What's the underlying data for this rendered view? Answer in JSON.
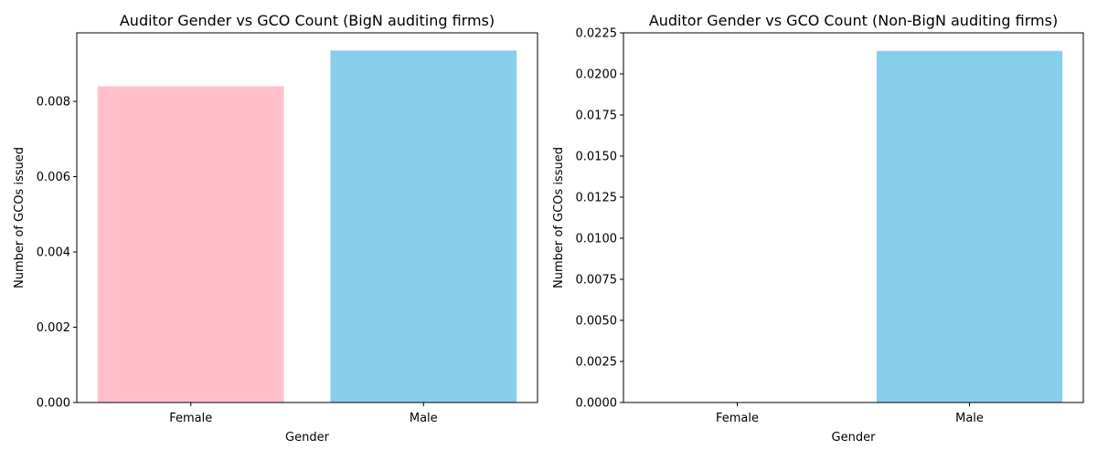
{
  "chart_data": [
    {
      "type": "bar",
      "title": "Auditor Gender vs GCO Count (BigN auditing firms)",
      "xlabel": "Gender",
      "ylabel": "Number of GCOs issued",
      "categories": [
        "Female",
        "Male"
      ],
      "values": [
        0.0084,
        0.00935
      ],
      "colors": [
        "#ffc0cb",
        "#87ceeb"
      ],
      "ylim": [
        0,
        0.00982
      ],
      "yticks": [
        0,
        0.002,
        0.004,
        0.006,
        0.008
      ],
      "ytick_labels": [
        "0.000",
        "0.002",
        "0.004",
        "0.006",
        "0.008"
      ],
      "grid": false
    },
    {
      "type": "bar",
      "title": "Auditor Gender vs GCO Count (Non-BigN auditing firms)",
      "xlabel": "Gender",
      "ylabel": "Number of GCOs issued",
      "categories": [
        "Female",
        "Male"
      ],
      "values": [
        0,
        0.0214
      ],
      "colors": [
        "#ffc0cb",
        "#87ceeb"
      ],
      "ylim": [
        0,
        0.0225
      ],
      "yticks": [
        0,
        0.0025,
        0.005,
        0.0075,
        0.01,
        0.0125,
        0.015,
        0.0175,
        0.02,
        0.0225
      ],
      "ytick_labels": [
        "0.0000",
        "0.0025",
        "0.0050",
        "0.0075",
        "0.0100",
        "0.0125",
        "0.0150",
        "0.0175",
        "0.0200",
        "0.0225"
      ],
      "grid": false
    }
  ]
}
